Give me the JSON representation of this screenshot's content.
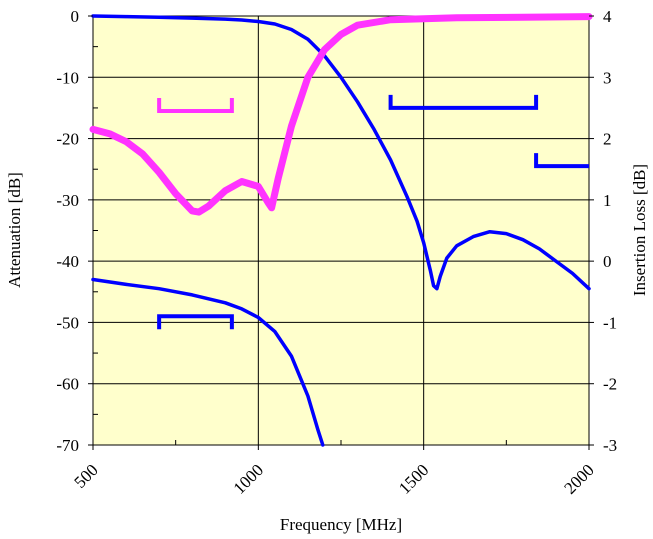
{
  "chart_data": {
    "type": "line",
    "title": "",
    "xlabel": "Frequency [MHz]",
    "ylabel_left": "Attenuation [dB]",
    "ylabel_right": "Insertion Loss [dB]",
    "xlim": [
      500,
      2000
    ],
    "ylim_left": [
      -70,
      0
    ],
    "ylim_right": [
      -3,
      4
    ],
    "x_ticks": [
      "500",
      "1000",
      "1500",
      "2000"
    ],
    "y_ticks_left": [
      "0",
      "-10",
      "-20",
      "-30",
      "-40",
      "-50",
      "-60",
      "-70"
    ],
    "y_ticks_right": [
      "4",
      "3",
      "2",
      "1",
      "0",
      "-1",
      "-2",
      "-3"
    ],
    "grid": true,
    "plot_background": "#ffffcc",
    "series": [
      {
        "axis": "left",
        "color": "#0000ff",
        "points": [
          [
            500,
            0
          ],
          [
            600,
            -0.1
          ],
          [
            700,
            -0.2
          ],
          [
            800,
            -0.35
          ],
          [
            900,
            -0.5
          ],
          [
            950,
            -0.65
          ],
          [
            1000,
            -0.9
          ],
          [
            1050,
            -1.3
          ],
          [
            1100,
            -2.2
          ],
          [
            1150,
            -3.8
          ],
          [
            1200,
            -6.5
          ],
          [
            1250,
            -10
          ],
          [
            1300,
            -14
          ],
          [
            1350,
            -18.5
          ],
          [
            1400,
            -23.5
          ],
          [
            1450,
            -29.5
          ],
          [
            1480,
            -33.5
          ],
          [
            1500,
            -37
          ],
          [
            1520,
            -41.5
          ],
          [
            1530,
            -44
          ],
          [
            1540,
            -44.5
          ],
          [
            1550,
            -42.5
          ],
          [
            1570,
            -39.5
          ],
          [
            1600,
            -37.5
          ],
          [
            1650,
            -36
          ],
          [
            1700,
            -35.2
          ],
          [
            1750,
            -35.5
          ],
          [
            1800,
            -36.5
          ],
          [
            1850,
            -38
          ],
          [
            1900,
            -40
          ],
          [
            1950,
            -42
          ],
          [
            2000,
            -44.5
          ]
        ]
      },
      {
        "axis": "left",
        "color": "#ff33ff",
        "points": [
          [
            500,
            -18.5
          ],
          [
            550,
            -19.2
          ],
          [
            600,
            -20.5
          ],
          [
            650,
            -22.5
          ],
          [
            700,
            -25.5
          ],
          [
            750,
            -29
          ],
          [
            800,
            -31.8
          ],
          [
            820,
            -32
          ],
          [
            850,
            -31
          ],
          [
            900,
            -28.5
          ],
          [
            950,
            -27
          ],
          [
            1000,
            -27.8
          ],
          [
            1030,
            -30.5
          ],
          [
            1040,
            -31.3
          ],
          [
            1060,
            -26.5
          ],
          [
            1100,
            -18
          ],
          [
            1150,
            -10
          ],
          [
            1200,
            -5.5
          ],
          [
            1250,
            -3
          ],
          [
            1300,
            -1.5
          ],
          [
            1400,
            -0.6
          ],
          [
            1600,
            -0.3
          ],
          [
            1800,
            -0.2
          ],
          [
            2000,
            -0.1
          ]
        ]
      },
      {
        "axis": "right",
        "color": "#0000ff",
        "points": [
          [
            500,
            -0.3
          ],
          [
            600,
            -0.38
          ],
          [
            700,
            -0.45
          ],
          [
            800,
            -0.55
          ],
          [
            900,
            -0.68
          ],
          [
            950,
            -0.78
          ],
          [
            1000,
            -0.92
          ],
          [
            1050,
            -1.15
          ],
          [
            1100,
            -1.55
          ],
          [
            1150,
            -2.2
          ],
          [
            1180,
            -2.75
          ],
          [
            1195,
            -3
          ]
        ]
      }
    ],
    "annotations": [
      {
        "type": "bracket-up",
        "color": "#ff33ff",
        "x": [
          700,
          920
        ],
        "y": -15.5,
        "axis": "left"
      },
      {
        "type": "bracket-up",
        "color": "#0000ff",
        "x": [
          1400,
          1840
        ],
        "y": -15,
        "axis": "left"
      },
      {
        "type": "bracket-up",
        "color": "#0000ff",
        "x": [
          1840,
          2000
        ],
        "y": -24.5,
        "axis": "left",
        "open_right": true
      },
      {
        "type": "bracket-down",
        "color": "#0000ff",
        "x": [
          700,
          920
        ],
        "y": -49,
        "axis": "left"
      }
    ]
  }
}
